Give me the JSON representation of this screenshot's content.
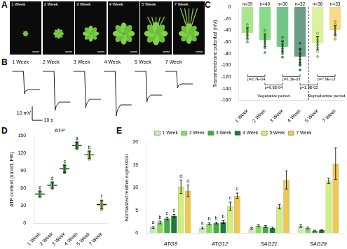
{
  "photos": {
    "panel": "A",
    "captions": [
      "1 Week",
      "2 Week",
      "3 Week",
      "4 Week",
      "5 Week",
      "7 Week"
    ]
  },
  "chart_data": [
    {
      "type": "line",
      "panel": "B",
      "tick_labels": false,
      "grid": false,
      "xlim": [
        0,
        180
      ],
      "ylim": [
        -36,
        4
      ],
      "scale_bar": {
        "x": 10,
        "y": 10,
        "x_label": "10 s",
        "y_label": "10 mV"
      },
      "series": [
        {
          "name": "1 Week",
          "color": "#222222",
          "x": [
            1,
            12,
            13,
            14,
            17,
            28
          ],
          "values": [
            0,
            0,
            -16,
            -14,
            -13,
            -13
          ]
        },
        {
          "name": "2 Week",
          "color": "#222222",
          "x": [
            31,
            42,
            43,
            44,
            47,
            58
          ],
          "values": [
            0,
            0,
            -28,
            -25,
            -22,
            -22
          ]
        },
        {
          "name": "3 Week",
          "color": "#222222",
          "x": [
            61,
            72,
            73,
            74,
            77,
            88
          ],
          "values": [
            0,
            0,
            -26,
            -23,
            -20,
            -20
          ]
        },
        {
          "name": "4 Week",
          "color": "#222222",
          "x": [
            91,
            102,
            103,
            104,
            107,
            118
          ],
          "values": [
            0,
            0,
            -32,
            -28,
            -24,
            -24
          ]
        },
        {
          "name": "5 Week",
          "color": "#222222",
          "x": [
            121,
            132,
            133,
            134,
            137,
            148
          ],
          "values": [
            0,
            0,
            -22,
            -19,
            -17,
            -17
          ]
        },
        {
          "name": "7 Week",
          "color": "#222222",
          "x": [
            151,
            162,
            163,
            164,
            167,
            178
          ],
          "values": [
            0,
            0,
            -12,
            -10,
            -9,
            -9
          ]
        }
      ]
    },
    {
      "type": "bar",
      "panel": "C",
      "grid": false,
      "categories": [
        "1 Week",
        "2 Week",
        "3 Week",
        "4 Week",
        "5 Week",
        "7 Week"
      ],
      "values": [
        -45,
        -57,
        -68,
        -85,
        -62,
        -40
      ],
      "errors": [
        9,
        11,
        9,
        13,
        11,
        8
      ],
      "points": [
        [
          -30,
          -35,
          -40,
          -43,
          -47,
          -50,
          -55,
          -60
        ],
        [
          -40,
          -48,
          -52,
          -56,
          -60,
          -64,
          -70,
          -78
        ],
        [
          -52,
          -58,
          -63,
          -67,
          -71,
          -75,
          -80,
          -86
        ],
        [
          -62,
          -72,
          -80,
          -85,
          -90,
          -95,
          -100,
          -108
        ],
        [
          -45,
          -52,
          -57,
          -61,
          -65,
          -70,
          -76,
          -85
        ],
        [
          -25,
          -30,
          -35,
          -38,
          -42,
          -46,
          -50,
          -55
        ]
      ],
      "colors": [
        "#7ed957",
        "#4cc94c",
        "#2fa84f",
        "#1f6e4a",
        "#c9ea6b",
        "#f2c94c"
      ],
      "ylim": [
        -160,
        0
      ],
      "yticks": [
        -160,
        -140,
        -120,
        -100,
        -80,
        -60,
        -40,
        -20,
        0
      ],
      "y_label": "Transmembrane potential (mV)",
      "n_labels": [
        "n=39",
        "n=40",
        "n=30",
        "n=32",
        "n=36",
        "n=33"
      ],
      "comparisons": [
        {
          "from": "1 Week",
          "to": "2 Week",
          "label": "p=2.7E-04"
        },
        {
          "from": "2 Week",
          "to": "3 Week",
          "label": "p=6.6E-04"
        },
        {
          "from": "3 Week",
          "to": "4 Week",
          "label": "p=1.3E-03"
        },
        {
          "from": "4 Week",
          "to": "5 Week",
          "label": "p=1.0E-02"
        },
        {
          "from": "5 Week",
          "to": "7 Week",
          "label": "p=7.9E-13"
        }
      ],
      "periods": [
        {
          "label": "Vegetative period",
          "categories": [
            "1 Week",
            "2 Week",
            "3 Week",
            "4 Week"
          ]
        },
        {
          "label": "Reproductive period",
          "categories": [
            "5 Week",
            "7 Week"
          ]
        }
      ]
    },
    {
      "type": "scatter",
      "panel": "D",
      "title": "ATP",
      "grid": false,
      "categories": [
        "1 Week",
        "2 Week",
        "3 Week",
        "4 Week",
        "5 Week",
        "7 Week"
      ],
      "values": [
        50,
        65,
        93,
        133,
        117,
        32
      ],
      "errors": [
        5,
        5,
        6,
        5,
        6,
        7
      ],
      "points": [
        [
          46,
          49,
          52,
          55
        ],
        [
          60,
          64,
          67,
          70
        ],
        [
          87,
          91,
          95,
          99
        ],
        [
          128,
          131,
          135,
          138
        ],
        [
          110,
          114,
          119,
          123
        ],
        [
          24,
          29,
          33,
          38
        ]
      ],
      "letters": [
        "e",
        "d",
        "c",
        "a",
        "b",
        "f"
      ],
      "colors": [
        "#8fd18f",
        "#6cc56c",
        "#4bb04b",
        "#3aa35a",
        "#a8d65a",
        "#e3c04a"
      ],
      "ylim": [
        0,
        150
      ],
      "yticks": [
        0,
        30,
        60,
        90,
        120,
        150
      ],
      "y_label": "ATP content (nmol/L FW)"
    },
    {
      "type": "bar",
      "panel": "E",
      "grid": false,
      "legend": "top",
      "categories": [
        "ATG8",
        "ATG12",
        "SAG21",
        "SAG29"
      ],
      "series": [
        {
          "name": "1 Week",
          "color": "#c6f0b0",
          "values": [
            1.2,
            1.1,
            1.0,
            1.5
          ],
          "errors": [
            0.2,
            0.2,
            0.2,
            0.3
          ],
          "letters": [
            "a",
            "a",
            null,
            null
          ]
        },
        {
          "name": "2 Week",
          "color": "#86df5c",
          "values": [
            2.3,
            2.0,
            1.6,
            1.1
          ],
          "errors": [
            0.3,
            0.2,
            0.2,
            0.2
          ],
          "letters": [
            "b",
            "b",
            null,
            null
          ]
        },
        {
          "name": "3 Week",
          "color": "#3cb043",
          "values": [
            3.2,
            2.2,
            1.4,
            0.5
          ],
          "errors": [
            0.3,
            0.2,
            0.2,
            0.1
          ],
          "letters": [
            "c",
            "b",
            null,
            null
          ]
        },
        {
          "name": "4 Week",
          "color": "#1e7a3a",
          "values": [
            3.8,
            2.4,
            1.1,
            0.6
          ],
          "errors": [
            0.3,
            0.3,
            0.2,
            0.1
          ],
          "letters": [
            "c",
            "b",
            null,
            null
          ]
        },
        {
          "name": "5 Week",
          "color": "#d4ee7a",
          "values": [
            10.2,
            5.9,
            5.8,
            11.5
          ],
          "errors": [
            1.5,
            0.9,
            0.5,
            0.6
          ],
          "letters": [
            "d",
            "c",
            null,
            null
          ]
        },
        {
          "name": "7 Week",
          "color": "#f0c850",
          "values": [
            9.3,
            8.2,
            11.7,
            15.3
          ],
          "errors": [
            1.3,
            0.6,
            2.0,
            3.5
          ],
          "letters": [
            "d",
            "c",
            null,
            null
          ]
        }
      ],
      "ylim": [
        0,
        20
      ],
      "yticks": [
        0,
        5,
        10,
        15,
        20
      ],
      "y_label": "Normalized relative expression"
    }
  ]
}
